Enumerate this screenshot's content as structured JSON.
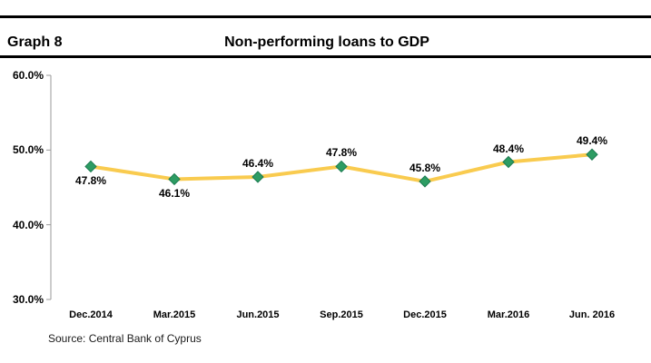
{
  "header": {
    "graph_number": "Graph 8",
    "title": "Non-performing loans to GDP"
  },
  "source": "Source: Central Bank of Cyprus",
  "chart_data": {
    "type": "line",
    "title": "Non-performing loans to GDP",
    "categories": [
      "Dec.2014",
      "Mar.2015",
      "Jun.2015",
      "Sep.2015",
      "Dec.2015",
      "Mar.2016",
      "Jun. 2016"
    ],
    "values": [
      47.8,
      46.1,
      46.4,
      47.8,
      45.8,
      48.4,
      49.4
    ],
    "data_labels": [
      "47.8%",
      "46.1%",
      "46.4%",
      "47.8%",
      "45.8%",
      "48.4%",
      "49.4%"
    ],
    "data_label_positions": [
      "below",
      "below",
      "above",
      "above",
      "above",
      "above",
      "above"
    ],
    "y_ticks": [
      {
        "value": 60,
        "label": "60.0%"
      },
      {
        "value": 50,
        "label": "50.0%"
      },
      {
        "value": 40,
        "label": "40.0%"
      },
      {
        "value": 30,
        "label": "30.0%"
      }
    ],
    "ylim": [
      30,
      60
    ],
    "xlabel": "",
    "ylabel": "",
    "grid": false,
    "legend": "none",
    "marker_shape": "diamond",
    "colors": {
      "line": "#F9CB4F",
      "marker_fill": "#2D9C63",
      "marker_stroke": "#1B7A50",
      "axis": "#999999",
      "text": "#000000"
    }
  }
}
